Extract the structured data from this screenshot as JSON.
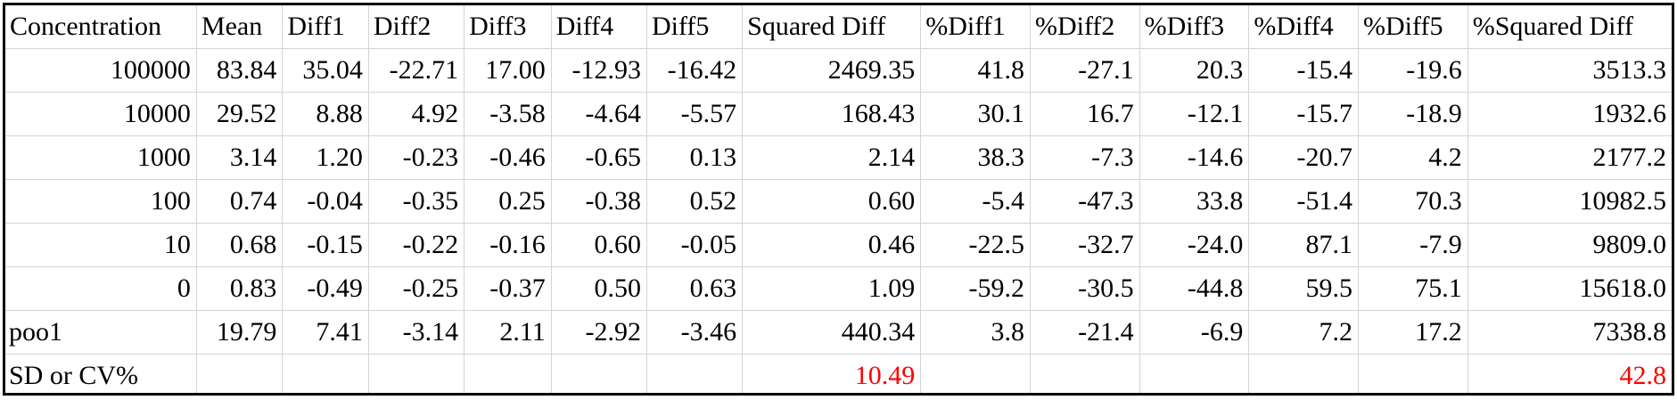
{
  "table": {
    "columns": [
      "Concentration",
      "Mean",
      "Diff1",
      "Diff2",
      "Diff3",
      "Diff4",
      "Diff5",
      "Squared Diff",
      "%Diff1",
      "%Diff2",
      "%Diff3",
      "%Diff4",
      "%Diff5",
      "%Squared Diff"
    ],
    "rows": [
      [
        "100000",
        "83.84",
        "35.04",
        "-22.71",
        "17.00",
        "-12.93",
        "-16.42",
        "2469.35",
        "41.8",
        "-27.1",
        "20.3",
        "-15.4",
        "-19.6",
        "3513.3"
      ],
      [
        "10000",
        "29.52",
        "8.88",
        "4.92",
        "-3.58",
        "-4.64",
        "-5.57",
        "168.43",
        "30.1",
        "16.7",
        "-12.1",
        "-15.7",
        "-18.9",
        "1932.6"
      ],
      [
        "1000",
        "3.14",
        "1.20",
        "-0.23",
        "-0.46",
        "-0.65",
        "0.13",
        "2.14",
        "38.3",
        "-7.3",
        "-14.6",
        "-20.7",
        "4.2",
        "2177.2"
      ],
      [
        "100",
        "0.74",
        "-0.04",
        "-0.35",
        "0.25",
        "-0.38",
        "0.52",
        "0.60",
        "-5.4",
        "-47.3",
        "33.8",
        "-51.4",
        "70.3",
        "10982.5"
      ],
      [
        "10",
        "0.68",
        "-0.15",
        "-0.22",
        "-0.16",
        "0.60",
        "-0.05",
        "0.46",
        "-22.5",
        "-32.7",
        "-24.0",
        "87.1",
        "-7.9",
        "9809.0"
      ],
      [
        "0",
        "0.83",
        "-0.49",
        "-0.25",
        "-0.37",
        "0.50",
        "0.63",
        "1.09",
        "-59.2",
        "-30.5",
        "-44.8",
        "59.5",
        "75.1",
        "15618.0"
      ],
      [
        "poo1",
        "19.79",
        "7.41",
        "-3.14",
        "2.11",
        "-2.92",
        "-3.46",
        "440.34",
        "3.8",
        "-21.4",
        "-6.9",
        "7.2",
        "17.2",
        "7338.8"
      ]
    ],
    "summary": {
      "label": "SD or CV%",
      "squared_diff": "10.49",
      "pct_squared_diff": "42.8"
    }
  },
  "colors": {
    "summary_value": "#ff0000",
    "gridline": "#d4d4d4",
    "border": "#000000"
  }
}
